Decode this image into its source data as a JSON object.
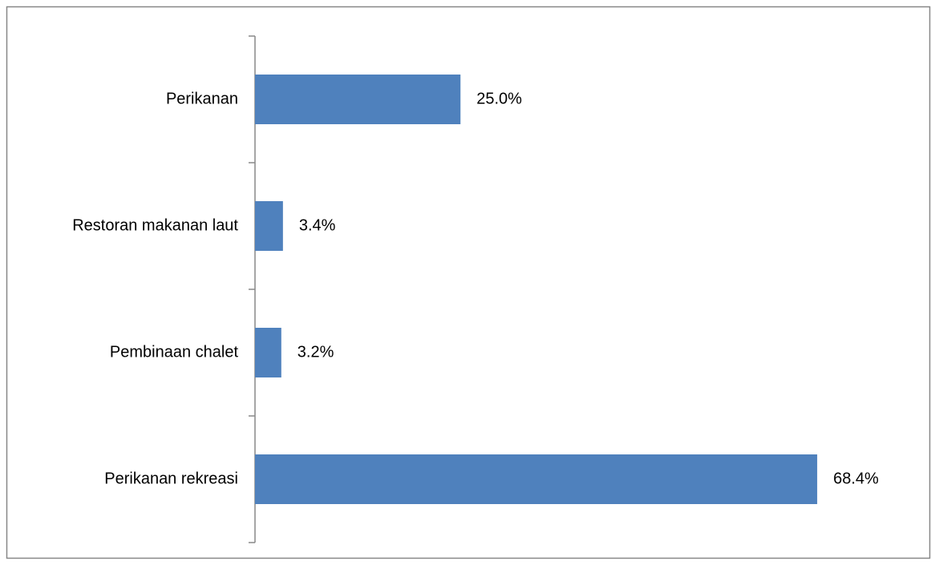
{
  "chart_data": {
    "type": "bar",
    "orientation": "horizontal",
    "categories": [
      "Perikanan",
      "Restoran makanan laut",
      "Pembinaan chalet",
      "Perikanan rekreasi"
    ],
    "values": [
      25.0,
      3.4,
      3.2,
      68.4
    ],
    "value_labels": [
      "25.0%",
      "3.4%",
      "3.2%",
      "68.4%"
    ],
    "color": "#4f81bd",
    "xlim": [
      0,
      80
    ]
  }
}
